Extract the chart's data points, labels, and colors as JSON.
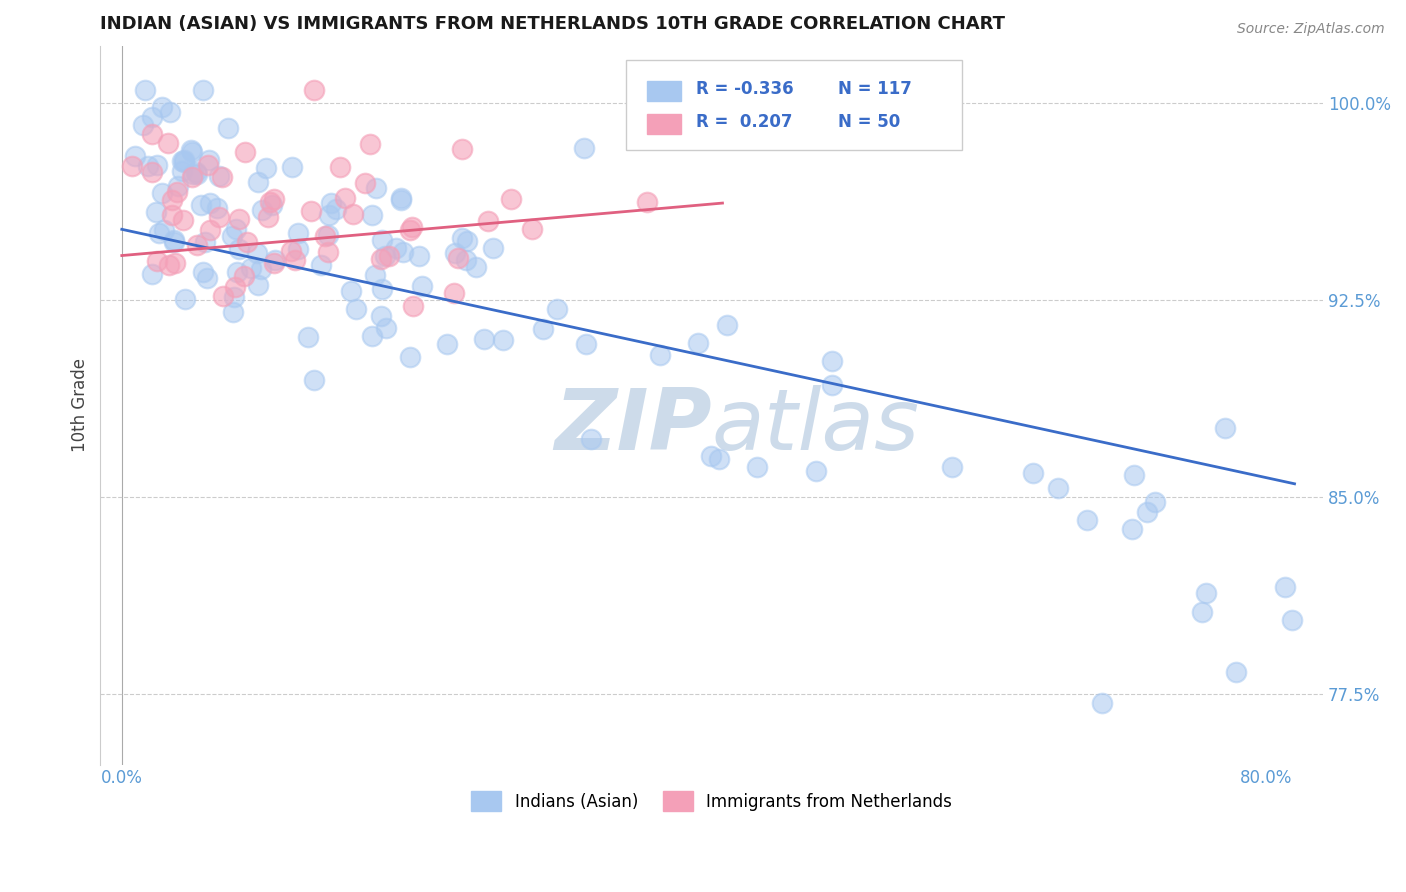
{
  "title": "INDIAN (ASIAN) VS IMMIGRANTS FROM NETHERLANDS 10TH GRADE CORRELATION CHART",
  "source_text": "Source: ZipAtlas.com",
  "ylabel": "10th Grade",
  "y_ticks": [
    0.775,
    0.85,
    0.925,
    1.0
  ],
  "y_tick_labels": [
    "77.5%",
    "85.0%",
    "92.5%",
    "100.0%"
  ],
  "x_ticks": [
    0.0,
    0.8
  ],
  "x_tick_labels": [
    "0.0%",
    "80.0%"
  ],
  "y_min": 0.748,
  "y_max": 1.022,
  "x_min": -0.015,
  "x_max": 0.84,
  "blue_line_x0": 0.0,
  "blue_line_x1": 0.82,
  "blue_line_y0": 0.952,
  "blue_line_y1": 0.855,
  "pink_line_x0": 0.0,
  "pink_line_x1": 0.42,
  "pink_line_y0": 0.942,
  "pink_line_y1": 0.962,
  "legend_r1": "R = -0.336",
  "legend_n1": "N = 117",
  "legend_r2": "R =  0.207",
  "legend_n2": "N = 50",
  "blue_color": "#A8C8F0",
  "pink_color": "#F4A0B8",
  "line_blue": "#3A6CC8",
  "line_pink": "#E06080",
  "title_color": "#1A1A1A",
  "axis_label_color": "#5B9BD5",
  "grid_color": "#CCCCCC",
  "watermark_color": "#C8D8E8",
  "legend_box_color": "#DDDDDD"
}
